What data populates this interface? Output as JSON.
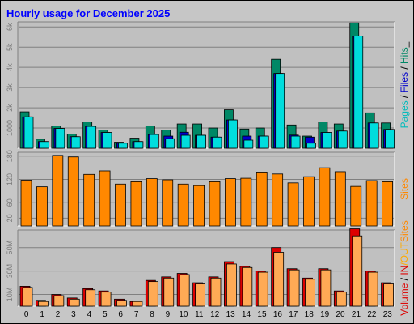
{
  "title": "Hourly usage for December 2025",
  "colors": {
    "frame_bg": "#c6c6c6",
    "pages_dark": "#008866",
    "pages_light": "#00dddd",
    "files": "#0000cc",
    "sites": "#ff8800",
    "volume_in": "#dd0000",
    "volume_out": "#ffaa55",
    "title": "#0000ff"
  },
  "chart_data": [
    {
      "name": "hits-files-pages",
      "type": "bar",
      "categories": [
        "0",
        "1",
        "2",
        "3",
        "4",
        "5",
        "6",
        "7",
        "8",
        "9",
        "10",
        "11",
        "12",
        "13",
        "14",
        "15",
        "16",
        "17",
        "18",
        "19",
        "20",
        "21",
        "22",
        "23"
      ],
      "ylim": [
        0,
        6250
      ],
      "yticks": [
        "1000",
        "2k",
        "3k",
        "4k",
        "5k",
        "6k"
      ],
      "ytick_values": [
        1000,
        2000,
        3000,
        4000,
        5000,
        6000
      ],
      "right_label_parts": [
        {
          "text": "Pages",
          "color": "#00bbbb"
        },
        {
          "text": " / ",
          "color": "#000000"
        },
        {
          "text": "Files",
          "color": "#0000cc"
        },
        {
          "text": " / ",
          "color": "#000000"
        },
        {
          "text": "Hits",
          "color": "#008866"
        },
        {
          "text": "_",
          "color": "#000000"
        }
      ],
      "series": [
        {
          "name": "Hits",
          "values": [
            1800,
            450,
            1100,
            700,
            1300,
            900,
            300,
            500,
            1100,
            900,
            1200,
            1200,
            1000,
            1900,
            950,
            1000,
            4400,
            1150,
            600,
            1300,
            1200,
            6200,
            1750,
            1250
          ]
        },
        {
          "name": "Files",
          "values": [
            1550,
            330,
            980,
            570,
            1080,
            780,
            250,
            330,
            680,
            600,
            790,
            640,
            550,
            1400,
            600,
            600,
            3700,
            650,
            550,
            780,
            850,
            5550,
            1250,
            930
          ]
        },
        {
          "name": "Pages",
          "values": [
            1550,
            330,
            980,
            570,
            1080,
            780,
            250,
            330,
            680,
            470,
            640,
            640,
            550,
            1400,
            400,
            600,
            3700,
            600,
            250,
            780,
            850,
            5550,
            1250,
            930
          ]
        }
      ]
    },
    {
      "name": "sites",
      "type": "bar",
      "categories": [
        "0",
        "1",
        "2",
        "3",
        "4",
        "5",
        "6",
        "7",
        "8",
        "9",
        "10",
        "11",
        "12",
        "13",
        "14",
        "15",
        "16",
        "17",
        "18",
        "19",
        "20",
        "21",
        "22",
        "23"
      ],
      "ylim": [
        0,
        190
      ],
      "yticks": [
        "20",
        "60",
        "120",
        "180"
      ],
      "ytick_values": [
        20,
        60,
        120,
        180
      ],
      "right_label_parts": [
        {
          "text": "Sites",
          "color": "#ff8800"
        }
      ],
      "series": [
        {
          "name": "Sites",
          "values": [
            118,
            101,
            182,
            178,
            133,
            142,
            108,
            114,
            122,
            119,
            108,
            104,
            114,
            122,
            123,
            139,
            134,
            111,
            127,
            150,
            140,
            102,
            117,
            114
          ]
        }
      ]
    },
    {
      "name": "volume",
      "type": "bar",
      "categories": [
        "0",
        "1",
        "2",
        "3",
        "4",
        "5",
        "6",
        "7",
        "8",
        "9",
        "10",
        "11",
        "12",
        "13",
        "14",
        "15",
        "16",
        "17",
        "18",
        "19",
        "20",
        "21",
        "22",
        "23"
      ],
      "ylim": [
        0,
        65
      ],
      "yticks": [
        "10M",
        "30M",
        "50M"
      ],
      "ytick_values": [
        10,
        30,
        50
      ],
      "right_label_parts": [
        {
          "text": "Volume",
          "color": "#dd0000"
        },
        {
          "text": " / ",
          "color": "#000000"
        },
        {
          "text": "IN",
          "color": "#dd0000"
        },
        {
          "text": "/OUT",
          "color": "#ffaa00"
        },
        {
          "text": "Sites",
          "color": "#ff8800"
        }
      ],
      "series": [
        {
          "name": "IN",
          "values": [
            17,
            5,
            10,
            7,
            15,
            13,
            6,
            4,
            22,
            25,
            28,
            20,
            25,
            38,
            34,
            30,
            50,
            32,
            24,
            32,
            13,
            66,
            30,
            20
          ]
        },
        {
          "name": "OUT",
          "values": [
            16,
            4,
            9,
            6,
            14,
            12,
            5,
            4,
            21,
            24,
            27,
            19,
            24,
            36,
            33,
            29,
            46,
            31,
            23,
            31,
            12,
            60,
            29,
            19
          ]
        }
      ]
    }
  ]
}
